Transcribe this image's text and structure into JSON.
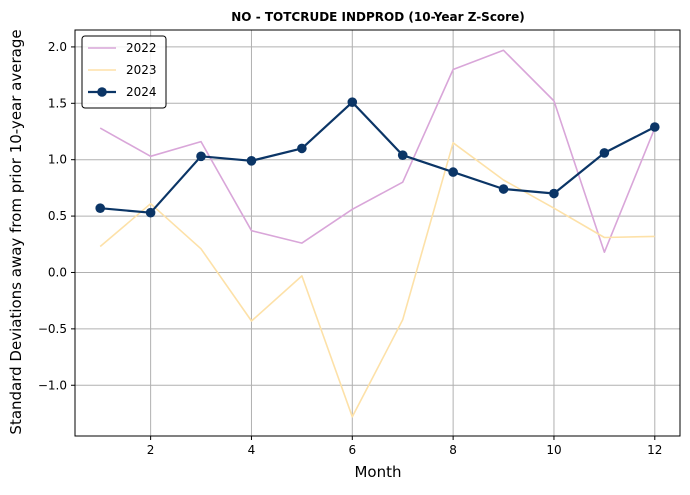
{
  "chart_data": {
    "type": "line",
    "title": "NO - TOTCRUDE INDPROD (10-Year Z-Score)",
    "xlabel": "Month",
    "ylabel": "Standard Deviations away from prior 10-year average",
    "xlim": [
      0.5,
      12.5
    ],
    "ylim": [
      -1.45,
      2.15
    ],
    "xticks": [
      2,
      4,
      6,
      8,
      10,
      12
    ],
    "yticks": [
      -1.0,
      -0.5,
      0.0,
      0.5,
      1.0,
      1.5,
      2.0
    ],
    "xtick_labels": [
      "2",
      "4",
      "6",
      "8",
      "10",
      "12"
    ],
    "ytick_labels": [
      "−1.0",
      "−0.5",
      "0.0",
      "0.5",
      "1.0",
      "1.5",
      "2.0"
    ],
    "grid": true,
    "legend_position": "top-left",
    "x": [
      1,
      2,
      3,
      4,
      5,
      6,
      7,
      8,
      9,
      10,
      11,
      12
    ],
    "series": [
      {
        "name": "2022",
        "color": "#d9a6d9",
        "markers": false,
        "values": [
          1.28,
          1.03,
          1.16,
          0.37,
          0.26,
          0.56,
          0.8,
          1.8,
          1.97,
          1.52,
          0.18,
          1.28
        ]
      },
      {
        "name": "2023",
        "color": "#fde1a8",
        "markers": false,
        "values": [
          0.23,
          0.61,
          0.21,
          -0.43,
          -0.03,
          -1.28,
          -0.42,
          1.15,
          0.82,
          0.57,
          0.31,
          0.32
        ]
      },
      {
        "name": "2024",
        "color": "#0b3566",
        "markers": true,
        "values": [
          0.57,
          0.53,
          1.03,
          0.99,
          1.1,
          1.51,
          1.04,
          0.89,
          0.74,
          0.7,
          1.06,
          1.29
        ]
      }
    ]
  }
}
